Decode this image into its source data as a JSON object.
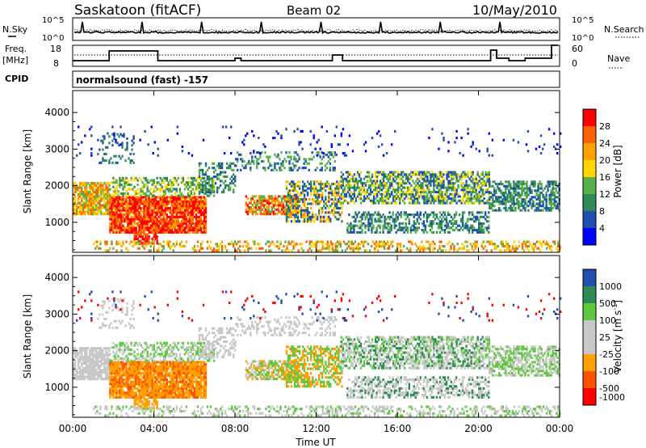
{
  "header": {
    "station": "Saskatoon (fitACF)",
    "beam": "Beam 02",
    "date": "10/May/2010"
  },
  "mini_panels": {
    "nsky_label": "N.Sky",
    "nsearch_label": "N.Search",
    "noise_ticks": [
      "10^5",
      "10^0"
    ],
    "freq_label_top": "Freq.",
    "freq_label_unit": "[MHz]",
    "freq_ticks": [
      "18",
      "8"
    ],
    "nave_label": "Nave",
    "nave_ticks": [
      "60",
      "0"
    ],
    "cpid_label": "CPID",
    "cpid_text": "normalsound (fast) -157"
  },
  "colors": {
    "power_scale": [
      "#0000ff",
      "#1f4fb0",
      "#2f8a55",
      "#57b04a",
      "#ffd400",
      "#ffa000",
      "#ff6000",
      "#ff0000"
    ],
    "velocity_scale": [
      "#ff0000",
      "#ff5000",
      "#ffa000",
      "#c8c8c8",
      "#c8c8c8",
      "#60c840",
      "#2f8a55",
      "#1f4fb0"
    ]
  },
  "chart_data": [
    {
      "type": "heatmap",
      "id": "power",
      "ylabel": "Slant Range [km]",
      "yticks": [
        1000,
        2000,
        3000,
        4000
      ],
      "ylim": [
        180,
        4600
      ],
      "xlabel": "Time UT",
      "xticks": [
        "00:00",
        "04:00",
        "08:00",
        "12:00",
        "16:00",
        "20:00",
        "00:00"
      ],
      "colorbar": {
        "label": "Power [dB]",
        "ticks": [
          "28",
          "24",
          "20",
          "16",
          "12",
          "8",
          "4"
        ]
      },
      "grid": false
    },
    {
      "type": "heatmap",
      "id": "velocity",
      "ylabel": "Slant Range [km]",
      "yticks": [
        1000,
        2000,
        3000,
        4000
      ],
      "ylim": [
        180,
        4600
      ],
      "xlabel": "Time UT",
      "xticks": [
        "00:00",
        "04:00",
        "08:00",
        "12:00",
        "16:00",
        "20:00",
        "00:00"
      ],
      "colorbar": {
        "label": "Velocity [m s",
        "label_sup": "-1",
        "label_end": "]",
        "ticks": [
          "1000",
          "500",
          "100",
          "25",
          "-25",
          "-100",
          "-500",
          "-1000"
        ]
      },
      "grid": false
    }
  ]
}
